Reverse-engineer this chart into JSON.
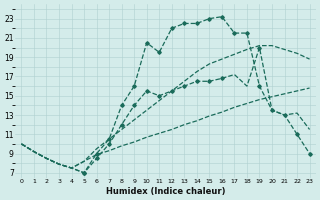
{
  "xlabel": "Humidex (Indice chaleur)",
  "bg_color": "#d4ecea",
  "grid_color": "#b0d0d0",
  "line_color": "#1a6b5a",
  "xlim": [
    -0.5,
    23.5
  ],
  "ylim": [
    6.5,
    24.5
  ],
  "xtick_labels": [
    "0",
    "1",
    "2",
    "3",
    "4",
    "5",
    "6",
    "7",
    "8",
    "9",
    "10",
    "11",
    "12",
    "13",
    "14",
    "15",
    "16",
    "17",
    "18",
    "19",
    "20",
    "21",
    "22",
    "23"
  ],
  "xtick_vals": [
    0,
    1,
    2,
    3,
    4,
    5,
    6,
    7,
    8,
    9,
    10,
    11,
    12,
    13,
    14,
    15,
    16,
    17,
    18,
    19,
    20,
    21,
    22,
    23
  ],
  "ytick_vals": [
    7,
    9,
    11,
    13,
    15,
    17,
    19,
    21,
    23
  ],
  "series1_x": [
    0,
    1,
    2,
    3,
    4,
    5,
    6,
    7,
    8,
    9,
    10,
    11,
    12,
    13,
    14,
    15,
    16,
    17,
    18,
    19,
    20,
    21,
    22,
    23
  ],
  "series1_y": [
    10,
    9.2,
    8.5,
    7.9,
    7.5,
    8.2,
    8.9,
    9.3,
    9.8,
    10.2,
    10.7,
    11.1,
    11.5,
    12.0,
    12.4,
    12.9,
    13.3,
    13.8,
    14.2,
    14.6,
    14.9,
    15.2,
    15.5,
    15.8
  ],
  "series2_x": [
    0,
    1,
    2,
    3,
    4,
    5,
    6,
    7,
    8,
    9,
    10,
    11,
    12,
    13,
    14,
    15,
    16,
    17,
    18,
    19,
    20,
    21,
    22,
    23
  ],
  "series2_y": [
    10,
    9.2,
    8.5,
    7.9,
    7.5,
    8.2,
    9.5,
    10.5,
    11.5,
    12.5,
    13.5,
    14.5,
    15.5,
    16.5,
    17.5,
    18.3,
    18.8,
    19.3,
    19.8,
    20.2,
    20.2,
    19.8,
    19.4,
    18.8
  ],
  "series3_x": [
    0,
    1,
    2,
    3,
    4,
    5,
    6,
    7,
    8,
    9,
    10,
    11,
    12,
    13,
    14,
    15,
    16,
    17,
    18,
    19,
    20,
    21,
    22,
    23
  ],
  "series3_y": [
    10,
    9.2,
    8.5,
    7.9,
    7.5,
    7.0,
    8.5,
    10.0,
    12.0,
    14.0,
    15.5,
    15.0,
    15.5,
    16.0,
    16.5,
    16.5,
    16.8,
    17.2,
    16.0,
    20.0,
    13.5,
    13.0,
    13.2,
    11.5
  ],
  "series4_x": [
    0,
    1,
    2,
    3,
    4,
    5,
    6,
    7,
    8,
    9,
    10,
    11,
    12,
    13,
    14,
    15,
    16,
    17,
    18,
    19,
    20,
    21,
    22,
    23
  ],
  "series4_y": [
    10,
    9.2,
    8.5,
    7.9,
    7.5,
    7.0,
    9.0,
    10.5,
    14.0,
    16.0,
    20.5,
    19.5,
    22.0,
    22.5,
    22.5,
    23.0,
    23.2,
    21.5,
    21.5,
    16.0,
    13.5,
    13.0,
    11.0,
    9.0
  ]
}
